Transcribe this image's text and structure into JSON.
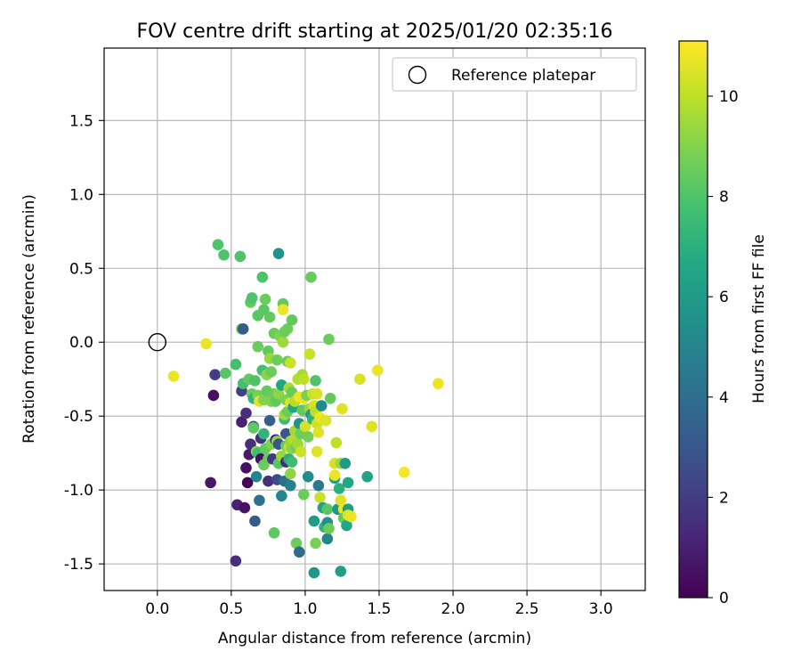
{
  "chart_data": {
    "type": "scatter",
    "title": "FOV centre drift starting at 2025/01/20 02:35:16",
    "xlabel": "Angular distance from reference (arcmin)",
    "ylabel": "Rotation from reference (arcmin)",
    "xlim": [
      -0.36,
      3.3
    ],
    "ylim": [
      -1.68,
      1.99
    ],
    "xticks": [
      "0.0",
      "0.5",
      "1.0",
      "1.5",
      "2.0",
      "2.5",
      "3.0"
    ],
    "yticks": [
      "1.5",
      "1.0",
      "0.5",
      "0.0",
      "-0.5",
      "-1.0",
      "-1.5"
    ],
    "grid": true,
    "legend": {
      "placement": "top-right",
      "entries": [
        "Reference platepar"
      ]
    },
    "reference_point": {
      "x": 0.0,
      "y": 0.0
    },
    "colorbar": {
      "label": "Hours from first FF file",
      "min": 0,
      "max": 11.1,
      "ticks": [
        "0",
        "2",
        "4",
        "6",
        "8",
        "10"
      ],
      "colormap": "viridis"
    },
    "points": [
      [
        0.11,
        -0.23,
        10.8
      ],
      [
        0.33,
        -0.01,
        10.8
      ],
      [
        0.36,
        -0.95,
        0.7
      ],
      [
        0.38,
        -0.36,
        0.5
      ],
      [
        0.39,
        -0.22,
        2.0
      ],
      [
        0.41,
        0.66,
        8.0
      ],
      [
        0.45,
        0.59,
        8.0
      ],
      [
        0.46,
        -0.21,
        8.2
      ],
      [
        0.53,
        -1.48,
        1.5
      ],
      [
        0.53,
        -0.15,
        7.8
      ],
      [
        0.54,
        -1.1,
        1.0
      ],
      [
        0.56,
        0.58,
        8.0
      ],
      [
        0.57,
        -0.33,
        2.1
      ],
      [
        0.57,
        -0.54,
        1.0
      ],
      [
        0.57,
        0.09,
        8.5
      ],
      [
        0.58,
        0.09,
        3.2
      ],
      [
        0.58,
        -0.28,
        7.8
      ],
      [
        0.59,
        -1.12,
        0.5
      ],
      [
        0.6,
        -0.85,
        0.5
      ],
      [
        0.6,
        -0.48,
        1.5
      ],
      [
        0.61,
        -0.95,
        0.1
      ],
      [
        0.62,
        -0.25,
        8.4
      ],
      [
        0.62,
        -0.76,
        0.8
      ],
      [
        0.63,
        0.27,
        8.3
      ],
      [
        0.63,
        -0.69,
        1.5
      ],
      [
        0.64,
        -0.35,
        8.5
      ],
      [
        0.64,
        0.3,
        8.0
      ],
      [
        0.65,
        -0.57,
        3.0
      ],
      [
        0.65,
        -0.38,
        7.2
      ],
      [
        0.65,
        -0.58,
        8.3
      ],
      [
        0.66,
        -1.21,
        3.2
      ],
      [
        0.66,
        -0.26,
        8.0
      ],
      [
        0.67,
        -0.74,
        9.2
      ],
      [
        0.67,
        -0.91,
        5.0
      ],
      [
        0.68,
        -0.03,
        8.5
      ],
      [
        0.68,
        -0.75,
        7.6
      ],
      [
        0.68,
        -0.36,
        8.8
      ],
      [
        0.68,
        0.18,
        8.2
      ],
      [
        0.69,
        -0.4,
        10.6
      ],
      [
        0.69,
        -1.07,
        4.1
      ],
      [
        0.7,
        -0.65,
        1.5
      ],
      [
        0.7,
        -0.79,
        0.5
      ],
      [
        0.71,
        0.44,
        8.0
      ],
      [
        0.71,
        -0.19,
        7.8
      ],
      [
        0.72,
        0.22,
        8.2
      ],
      [
        0.72,
        -0.39,
        9.0
      ],
      [
        0.72,
        -0.62,
        7.2
      ],
      [
        0.72,
        -0.83,
        8.5
      ],
      [
        0.73,
        -0.72,
        8.4
      ],
      [
        0.73,
        0.29,
        8.6
      ],
      [
        0.74,
        -0.33,
        8.4
      ],
      [
        0.74,
        -0.22,
        9.1
      ],
      [
        0.75,
        -0.06,
        8.3
      ],
      [
        0.75,
        -0.79,
        8.5
      ],
      [
        0.75,
        -0.94,
        1.5
      ],
      [
        0.76,
        -0.53,
        3.3
      ],
      [
        0.76,
        -0.11,
        9.4
      ],
      [
        0.76,
        0.17,
        8.4
      ],
      [
        0.77,
        -0.4,
        9.0
      ],
      [
        0.77,
        -0.2,
        8.6
      ],
      [
        0.77,
        -0.69,
        9.0
      ],
      [
        0.78,
        -0.79,
        1.8
      ],
      [
        0.79,
        -1.29,
        8.3
      ],
      [
        0.79,
        0.06,
        8.5
      ],
      [
        0.79,
        -0.35,
        8.5
      ],
      [
        0.8,
        -0.66,
        1.5
      ],
      [
        0.8,
        -0.4,
        8.4
      ],
      [
        0.81,
        -0.12,
        8.6
      ],
      [
        0.81,
        -0.93,
        2.5
      ],
      [
        0.81,
        -0.67,
        9.2
      ],
      [
        0.82,
        -0.69,
        2.9
      ],
      [
        0.82,
        0.6,
        5.6
      ],
      [
        0.82,
        -0.82,
        8.2
      ],
      [
        0.82,
        -0.35,
        9.2
      ],
      [
        0.83,
        0.04,
        9.0
      ],
      [
        0.84,
        -1.04,
        5.0
      ],
      [
        0.84,
        -0.29,
        6.5
      ],
      [
        0.84,
        -0.77,
        9.4
      ],
      [
        0.85,
        0.0,
        9.5
      ],
      [
        0.85,
        0.26,
        8.4
      ],
      [
        0.85,
        0.22,
        10.8
      ],
      [
        0.86,
        -0.94,
        4.0
      ],
      [
        0.86,
        -0.52,
        7.5
      ],
      [
        0.86,
        -0.49,
        9.5
      ],
      [
        0.86,
        0.07,
        8.6
      ],
      [
        0.87,
        -0.81,
        1.5
      ],
      [
        0.87,
        -0.62,
        3.0
      ],
      [
        0.87,
        -0.7,
        8.4
      ],
      [
        0.87,
        -0.39,
        8.9
      ],
      [
        0.88,
        0.09,
        8.6
      ],
      [
        0.88,
        -0.13,
        8.6
      ],
      [
        0.88,
        -0.47,
        8.5
      ],
      [
        0.89,
        -0.79,
        7.0
      ],
      [
        0.89,
        -0.31,
        9.6
      ],
      [
        0.89,
        -0.71,
        10.0
      ],
      [
        0.9,
        -0.97,
        4.8
      ],
      [
        0.9,
        -0.67,
        9.3
      ],
      [
        0.9,
        -0.89,
        9.2
      ],
      [
        0.9,
        -0.14,
        10.2
      ],
      [
        0.9,
        -0.41,
        10.6
      ],
      [
        0.91,
        -0.72,
        9.2
      ],
      [
        0.91,
        -0.34,
        8.5
      ],
      [
        0.91,
        -0.81,
        7.6
      ],
      [
        0.91,
        0.15,
        8.4
      ],
      [
        0.92,
        -0.44,
        6.5
      ],
      [
        0.92,
        -0.66,
        9.8
      ],
      [
        0.93,
        -0.6,
        9.6
      ],
      [
        0.93,
        -0.4,
        9.9
      ],
      [
        0.94,
        -1.36,
        8.6
      ],
      [
        0.94,
        -0.71,
        8.6
      ],
      [
        0.95,
        -0.25,
        9.8
      ],
      [
        0.95,
        -0.69,
        9.5
      ],
      [
        0.96,
        -1.42,
        3.8
      ],
      [
        0.96,
        -0.55,
        5.6
      ],
      [
        0.96,
        -0.37,
        10.8
      ],
      [
        0.97,
        -0.62,
        8.6
      ],
      [
        0.97,
        -0.74,
        10.2
      ],
      [
        0.98,
        -0.22,
        9.6
      ],
      [
        0.98,
        -0.46,
        8.4
      ],
      [
        0.99,
        -1.03,
        8.6
      ],
      [
        0.99,
        -0.38,
        10.8
      ],
      [
        0.99,
        -0.25,
        10.0
      ],
      [
        1.0,
        -0.57,
        10.4
      ],
      [
        1.01,
        -0.36,
        8.8
      ],
      [
        1.02,
        -0.91,
        5.4
      ],
      [
        1.02,
        -0.64,
        8.7
      ],
      [
        1.03,
        -0.08,
        10.2
      ],
      [
        1.03,
        -0.45,
        9.4
      ],
      [
        1.04,
        0.44,
        8.5
      ],
      [
        1.04,
        -0.49,
        6.0
      ],
      [
        1.05,
        -0.52,
        7.1
      ],
      [
        1.05,
        -0.35,
        10.2
      ],
      [
        1.06,
        -0.43,
        10.4
      ],
      [
        1.06,
        -1.56,
        5.8
      ],
      [
        1.06,
        -1.21,
        6.0
      ],
      [
        1.07,
        -0.26,
        8.0
      ],
      [
        1.07,
        -1.36,
        8.8
      ],
      [
        1.07,
        -0.47,
        10.0
      ],
      [
        1.08,
        -0.35,
        10.4
      ],
      [
        1.08,
        -0.55,
        10.2
      ],
      [
        1.08,
        -0.74,
        10.6
      ],
      [
        1.09,
        -0.97,
        4.4
      ],
      [
        1.09,
        -0.61,
        10.6
      ],
      [
        1.1,
        -0.51,
        10.8
      ],
      [
        1.1,
        -1.05,
        10.2
      ],
      [
        1.11,
        -0.43,
        5.2
      ],
      [
        1.12,
        -1.12,
        6.4
      ],
      [
        1.13,
        -1.25,
        7.1
      ],
      [
        1.14,
        -0.53,
        10.5
      ],
      [
        1.15,
        -1.22,
        5.5
      ],
      [
        1.15,
        -1.33,
        5.0
      ],
      [
        1.15,
        -1.13,
        8.2
      ],
      [
        1.16,
        0.02,
        8.6
      ],
      [
        1.16,
        -1.26,
        8.6
      ],
      [
        1.17,
        -0.38,
        8.4
      ],
      [
        1.2,
        -0.92,
        6.2
      ],
      [
        1.2,
        -0.82,
        10.4
      ],
      [
        1.2,
        -0.9,
        10.8
      ],
      [
        1.21,
        -0.68,
        10.0
      ],
      [
        1.22,
        -1.13,
        5.8
      ],
      [
        1.23,
        -0.99,
        7.0
      ],
      [
        1.24,
        -1.55,
        6.2
      ],
      [
        1.24,
        -1.07,
        10.6
      ],
      [
        1.24,
        -0.82,
        9.4
      ],
      [
        1.25,
        -0.45,
        10.6
      ],
      [
        1.26,
        -1.13,
        10.8
      ],
      [
        1.26,
        -1.19,
        8.4
      ],
      [
        1.27,
        -0.82,
        6.0
      ],
      [
        1.28,
        -1.24,
        6.6
      ],
      [
        1.29,
        -1.13,
        6.2
      ],
      [
        1.29,
        -0.95,
        6.6
      ],
      [
        1.29,
        -1.17,
        10.5
      ],
      [
        1.31,
        -1.18,
        10.8
      ],
      [
        1.37,
        -0.25,
        10.4
      ],
      [
        1.42,
        -0.91,
        6.4
      ],
      [
        1.45,
        -0.57,
        10.6
      ],
      [
        1.49,
        -0.19,
        10.8
      ],
      [
        1.67,
        -0.88,
        11.0
      ],
      [
        1.9,
        -0.28,
        10.8
      ]
    ]
  }
}
